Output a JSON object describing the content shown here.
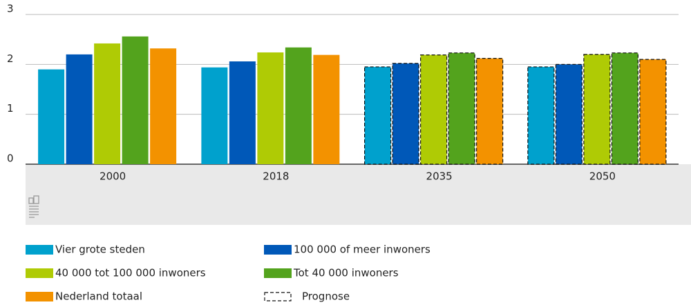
{
  "chart_data": {
    "type": "bar",
    "categories": [
      "2000",
      "2018",
      "2035",
      "2050"
    ],
    "series": [
      {
        "name": "Vier grote steden",
        "color": "#00a1cd",
        "values": [
          1.9,
          1.94,
          1.95,
          1.95
        ]
      },
      {
        "name": "100 000 of meer inwoners",
        "color": "#0058b8",
        "values": [
          2.2,
          2.06,
          2.02,
          2.0
        ]
      },
      {
        "name": "40 000 tot 100 000 inwoners",
        "color": "#afcb05",
        "values": [
          2.42,
          2.24,
          2.19,
          2.2
        ]
      },
      {
        "name": "Tot 40 000 inwoners",
        "color": "#53a31d",
        "values": [
          2.56,
          2.34,
          2.23,
          2.23
        ]
      },
      {
        "name": "Nederland totaal",
        "color": "#f39200",
        "values": [
          2.32,
          2.19,
          2.12,
          2.1
        ]
      }
    ],
    "forecast": {
      "label": "Prognose",
      "categories": [
        false,
        false,
        true,
        true
      ]
    },
    "ylim": [
      0,
      3
    ],
    "yticks": [
      0,
      1,
      2,
      3
    ],
    "grid": true
  }
}
